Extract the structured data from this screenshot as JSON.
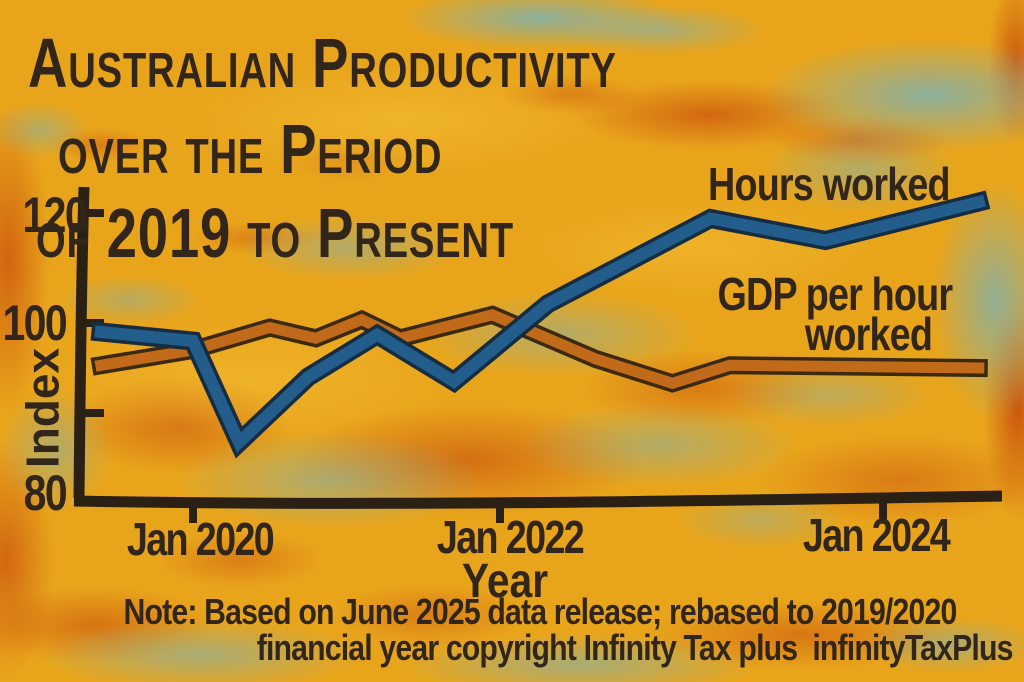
{
  "title": {
    "line1": "Australian Productivity",
    "line2": "over the Period",
    "line3": "of 2019 to Present"
  },
  "axes": {
    "y_label": "Index",
    "x_label": "Year",
    "y_tick_labels": [
      "120",
      "100",
      "80"
    ],
    "x_tick_labels": [
      "Jan 2020",
      "Jan 2022",
      "Jan 2024"
    ]
  },
  "series_labels": {
    "hours": "Hours worked",
    "gdp_line1": "GDP per hour",
    "gdp_line2": "worked"
  },
  "note": {
    "line1": "Note: Based on June 2025 data release; rebased to 2019/2020",
    "line2": "financial year copyright Infinity Tax plus  infinityTaxPlus"
  },
  "colors": {
    "text": "#32261a",
    "axis": "#2b2014",
    "background": "#e8a51c",
    "cyan_brush": "#7cb1b3",
    "orange_brush": "#cd580e",
    "hours_line": "#235d8c",
    "hours_outline": "#152c41",
    "gdp_line": "#c16a1a",
    "gdp_outline": "#3c2a10"
  },
  "chart_data": {
    "type": "line",
    "title": "Australian Productivity over the Period of 2019 to Present",
    "xlabel": "Year",
    "ylabel": "Index",
    "x_tick_labels": [
      "Jan 2020",
      "Jan 2022",
      "Jan 2024"
    ],
    "x_tick_years": [
      2020.0,
      2022.0,
      2024.0
    ],
    "y_tick_values": [
      90,
      100,
      120
    ],
    "y_labeled_values": [
      80,
      100,
      120
    ],
    "ylim": [
      78,
      126
    ],
    "grid": false,
    "legend_position": "inline-annotations",
    "note": "Note: Based on June 2025 data release; rebased to 2019/2020 financial year copyright Infinity Tax plus infinityTaxPlus",
    "series": [
      {
        "name": "Hours worked",
        "color": "#235d8c",
        "outline": "#152c41",
        "x": [
          2019.4,
          2020.0,
          2020.3,
          2020.75,
          2021.2,
          2021.7,
          2022.25,
          2023.1,
          2023.7,
          2024.5
        ],
        "values": [
          99,
          98,
          86.5,
          94,
          98.7,
          93.5,
          103.5,
          119,
          115,
          122
        ]
      },
      {
        "name": "GDP per hour worked",
        "color": "#c16a1a",
        "outline": "#3c2a10",
        "x": [
          2019.4,
          2020.0,
          2020.5,
          2020.8,
          2021.1,
          2021.35,
          2021.95,
          2022.5,
          2022.9,
          2023.2,
          2024.5
        ],
        "values": [
          95.3,
          97,
          99.5,
          98.3,
          100.6,
          98.3,
          101.5,
          96,
          93.3,
          95.3,
          95
        ]
      }
    ]
  }
}
